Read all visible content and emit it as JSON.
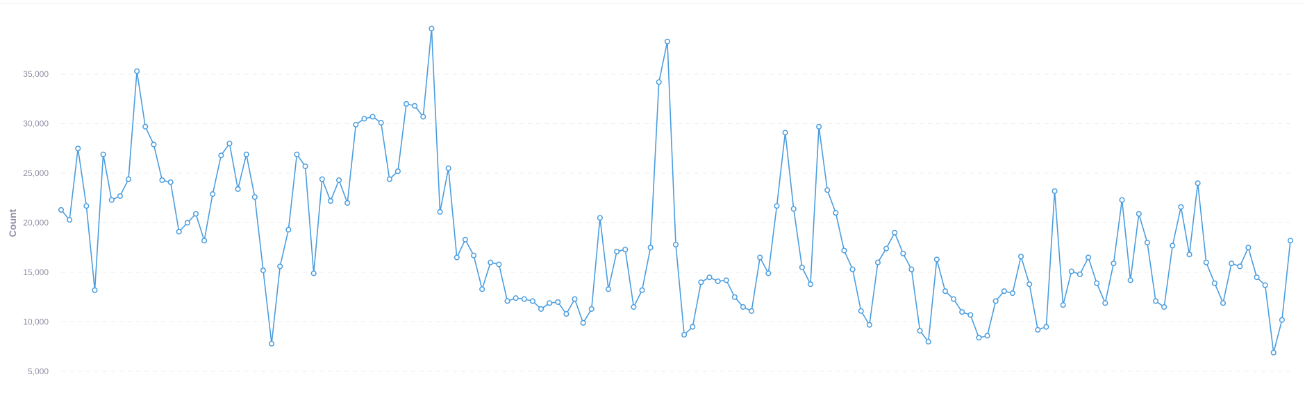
{
  "chart_data": {
    "type": "line",
    "title": "",
    "xlabel": "",
    "ylabel": "Count",
    "ylim": [
      2500,
      40000
    ],
    "y_ticks": [
      5000,
      10000,
      15000,
      20000,
      25000,
      30000,
      35000
    ],
    "y_tick_labels": [
      "5,000",
      "10,000",
      "15,000",
      "20,000",
      "25,000",
      "30,000",
      "35,000"
    ],
    "grid": true,
    "line_color": "#4a9ddf",
    "marker_fill": "#ffffff",
    "series": [
      {
        "values": [
          21300,
          20300,
          27500,
          21700,
          13200,
          26900,
          22300,
          22700,
          24400,
          35300,
          29700,
          27900,
          24300,
          24100,
          19100,
          20000,
          20900,
          18200,
          22900,
          26800,
          28000,
          23400,
          26900,
          22600,
          15200,
          7800,
          15600,
          19300,
          26900,
          25700,
          14900,
          24400,
          22200,
          24300,
          22000,
          29900,
          30500,
          30700,
          30100,
          24400,
          25200,
          32000,
          31800,
          30700,
          39600,
          21100,
          25500,
          16500,
          18300,
          16700,
          13300,
          16000,
          15800,
          12100,
          12400,
          12300,
          12100,
          11300,
          11900,
          12000,
          10800,
          12300,
          9900,
          11300,
          20500,
          13300,
          17100,
          17300,
          11500,
          13200,
          17500,
          34200,
          38300,
          17800,
          8700,
          9500,
          14000,
          14500,
          14100,
          14200,
          12500,
          11500,
          11100,
          16500,
          14900,
          21700,
          29100,
          21400,
          15500,
          13800,
          29700,
          23300,
          21000,
          17200,
          15300,
          11100,
          9700,
          16000,
          17400,
          19000,
          16900,
          15300,
          9100,
          8000,
          16300,
          13100,
          12300,
          11000,
          10700,
          8400,
          8600,
          12100,
          13100,
          12900,
          16600,
          13800,
          9200,
          9500,
          23200,
          11700,
          15100,
          14800,
          16500,
          13900,
          11900,
          15900,
          22300,
          14200,
          20900,
          18000,
          12100,
          11500,
          17700,
          21600,
          16800,
          24000,
          16000,
          13900,
          11900,
          15900,
          15600,
          17500,
          14500,
          13700,
          6900,
          10200,
          18200
        ]
      }
    ]
  }
}
